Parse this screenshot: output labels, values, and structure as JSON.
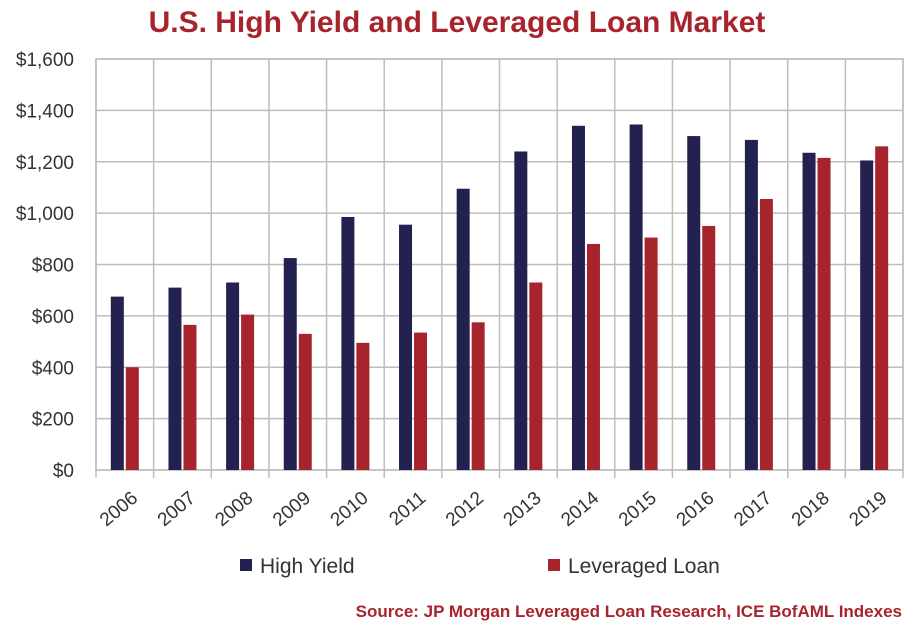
{
  "title": "U.S. High Yield and Leveraged Loan Market",
  "source": "Source: JP Morgan Leveraged Loan Research, ICE BofAML Indexes",
  "chart_data": {
    "type": "bar",
    "title": "U.S. High Yield and Leveraged Loan Market",
    "categories": [
      "2006",
      "2007",
      "2008",
      "2009",
      "2010",
      "2011",
      "2012",
      "2013",
      "2014",
      "2015",
      "2016",
      "2017",
      "2018",
      "2019"
    ],
    "series": [
      {
        "name": "High Yield",
        "color": "#232150",
        "values": [
          675,
          710,
          730,
          825,
          985,
          955,
          1095,
          1240,
          1340,
          1345,
          1300,
          1285,
          1235,
          1205
        ]
      },
      {
        "name": "Leveraged Loan",
        "color": "#a8242c",
        "values": [
          400,
          565,
          605,
          530,
          495,
          535,
          575,
          730,
          880,
          905,
          950,
          1055,
          1215,
          1260
        ]
      }
    ],
    "yticks": [
      "$0",
      "$200",
      "$400",
      "$600",
      "$800",
      "$1,000",
      "$1,200",
      "$1,400",
      "$1,600"
    ],
    "ylim": [
      0,
      1600
    ],
    "grid": true,
    "legend_position": "bottom"
  }
}
